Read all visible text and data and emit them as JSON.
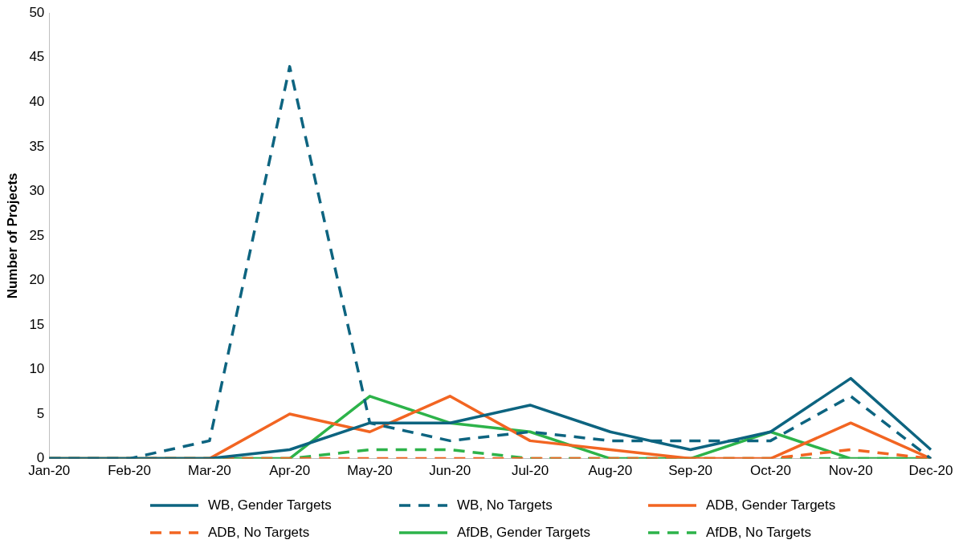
{
  "chart_data": {
    "type": "line",
    "ylabel": "Number of Projects",
    "categories": [
      "Jan-20",
      "Feb-20",
      "Mar-20",
      "Apr-20",
      "May-20",
      "Jun-20",
      "Jul-20",
      "Aug-20",
      "Sep-20",
      "Oct-20",
      "Nov-20",
      "Dec-20"
    ],
    "series": [
      {
        "name": "WB, Gender Targets",
        "color": "#0d6480",
        "line_style": "solid",
        "values": [
          0,
          0,
          0,
          1,
          4,
          4,
          6,
          3,
          1,
          3,
          9,
          1
        ]
      },
      {
        "name": "WB, No Targets",
        "color": "#0d6480",
        "line_style": "dashed",
        "values": [
          0,
          0,
          2,
          44,
          4,
          2,
          3,
          2,
          2,
          2,
          7,
          0
        ]
      },
      {
        "name": "ADB, Gender Targets",
        "color": "#f26522",
        "line_style": "solid",
        "values": [
          0,
          0,
          0,
          5,
          3,
          7,
          2,
          1,
          0,
          0,
          4,
          0
        ]
      },
      {
        "name": "ADB, No Targets",
        "color": "#f26522",
        "line_style": "dashed",
        "values": [
          0,
          0,
          0,
          0,
          0,
          0,
          0,
          0,
          0,
          0,
          1,
          0
        ]
      },
      {
        "name": "AfDB, Gender Targets",
        "color": "#2db34a",
        "line_style": "solid",
        "values": [
          0,
          0,
          0,
          0,
          7,
          4,
          3,
          0,
          0,
          3,
          0,
          0
        ]
      },
      {
        "name": "AfDB, No Targets",
        "color": "#2db34a",
        "line_style": "dashed",
        "values": [
          0,
          0,
          0,
          0,
          1,
          1,
          0,
          0,
          0,
          0,
          0,
          0
        ]
      }
    ],
    "ylim": [
      0,
      50
    ],
    "yticks": [
      0,
      5,
      10,
      15,
      20,
      25,
      30,
      35,
      40,
      45,
      50
    ],
    "grid": false,
    "legend": "bottom",
    "marker": "none"
  }
}
